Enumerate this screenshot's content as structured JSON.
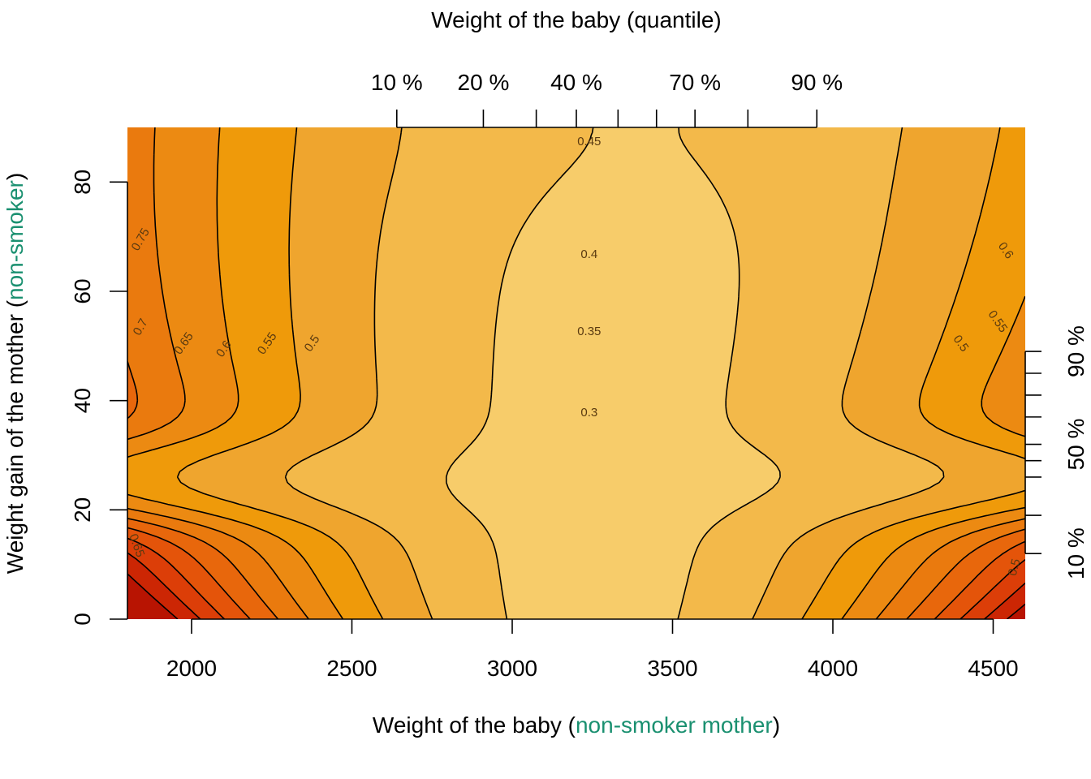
{
  "chart_data": {
    "type": "heatmap",
    "subtype": "filled-contour",
    "title": "",
    "xlabel_parts": [
      "Weight of the baby (",
      "non-smoker mother",
      ")"
    ],
    "ylabel_parts": [
      "Weight gain of the mother (",
      "non-smoker",
      ")"
    ],
    "top_axis_title": "Weight of the baby (quantile)",
    "accent_color": "#1a9070",
    "xlim": [
      1800,
      4600
    ],
    "ylim": [
      0,
      90
    ],
    "x_ticks": [
      2000,
      2500,
      3000,
      3500,
      4000,
      4500
    ],
    "y_ticks": [
      0,
      20,
      40,
      60,
      80
    ],
    "top_quantile_ticks": [
      {
        "q": 10,
        "x": 2640
      },
      {
        "q": 20,
        "x": 2910
      },
      {
        "q": 30,
        "x": 3075
      },
      {
        "q": 40,
        "x": 3200
      },
      {
        "q": 50,
        "x": 3330
      },
      {
        "q": 60,
        "x": 3450
      },
      {
        "q": 70,
        "x": 3570
      },
      {
        "q": 80,
        "x": 3735
      },
      {
        "q": 90,
        "x": 3950
      }
    ],
    "top_quantile_labels": [
      {
        "label": "10 %",
        "x": 2640
      },
      {
        "label": "20 %",
        "x": 2910
      },
      {
        "label": "40 %",
        "x": 3200
      },
      {
        "label": "70 %",
        "x": 3570
      },
      {
        "label": "90 %",
        "x": 3950
      }
    ],
    "right_quantile_ticks": [
      {
        "q": 10,
        "y": 12
      },
      {
        "q": 20,
        "y": 19
      },
      {
        "q": 30,
        "y": 26
      },
      {
        "q": 40,
        "y": 29
      },
      {
        "q": 50,
        "y": 32
      },
      {
        "q": 60,
        "y": 37
      },
      {
        "q": 70,
        "y": 41
      },
      {
        "q": 80,
        "y": 45
      },
      {
        "q": 90,
        "y": 49
      }
    ],
    "right_quantile_labels": [
      {
        "label": "10 %",
        "y": 12
      },
      {
        "label": "50 %",
        "y": 32
      },
      {
        "label": "90 %",
        "y": 49
      }
    ],
    "contour_labels": [
      {
        "text": "0.45",
        "x": 3240,
        "y": 87.5,
        "angle": 0
      },
      {
        "text": "0.4",
        "x": 3240,
        "y": 66.8,
        "angle": 0
      },
      {
        "text": "0.35",
        "x": 3240,
        "y": 52.7,
        "angle": 0
      },
      {
        "text": "0.3",
        "x": 3240,
        "y": 37.9,
        "angle": 0
      },
      {
        "text": "0.75",
        "x": 1840,
        "y": 69.5,
        "angle": -60
      },
      {
        "text": "0.7",
        "x": 1840,
        "y": 53.5,
        "angle": -60
      },
      {
        "text": "0.65",
        "x": 1975,
        "y": 50.5,
        "angle": -55
      },
      {
        "text": "0.6",
        "x": 2100,
        "y": 49.5,
        "angle": -55
      },
      {
        "text": "0.55",
        "x": 2235,
        "y": 50.5,
        "angle": -55
      },
      {
        "text": "0.5",
        "x": 2375,
        "y": 50.5,
        "angle": -55
      },
      {
        "text": "0.65",
        "x": 1830,
        "y": 13.5,
        "angle": 70
      },
      {
        "text": "0.6",
        "x": 4540,
        "y": 67.5,
        "angle": 55
      },
      {
        "text": "0.55",
        "x": 4515,
        "y": 54.5,
        "angle": 55
      },
      {
        "text": "0.5",
        "x": 4400,
        "y": 50.5,
        "angle": 55
      },
      {
        "text": "0.5",
        "x": 4565,
        "y": 9.5,
        "angle": -75
      }
    ],
    "levels": [
      0.3,
      0.35,
      0.4,
      0.45,
      0.5,
      0.55,
      0.6,
      0.65,
      0.7,
      0.75
    ],
    "fill_colors": [
      "#f7cc6a",
      "#f3b94a",
      "#efa52e",
      "#ef9a0a",
      "#ec8a12",
      "#ea7a0e",
      "#e8670c",
      "#e4540a",
      "#dc3e08",
      "#cc2604",
      "#b81402"
    ]
  }
}
